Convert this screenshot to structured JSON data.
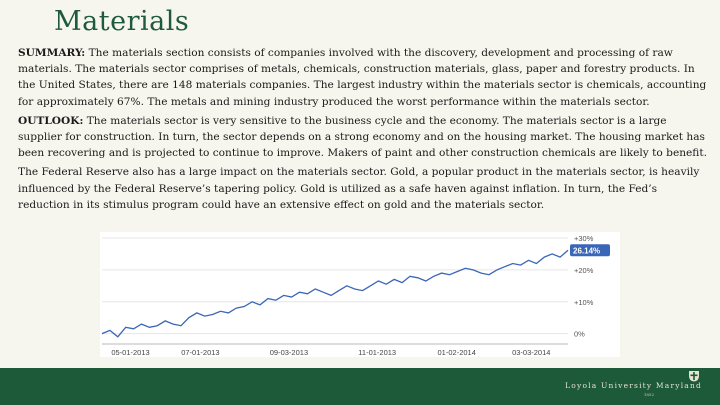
{
  "slide": {
    "title": "Materials",
    "summary_label": "SUMMARY:",
    "summary_text": " The materials section consists of companies involved with the discovery, development and processing of raw materials. The materials sector comprises of metals, chemicals, construction materials, glass, paper and forestry products. In the United States, there are 148 materials companies. The largest industry within the materials sector is chemicals, accounting for approximately 67%. The metals and mining industry produced the worst performance within the materials sector.",
    "outlook_label": "OUTLOOK:",
    "outlook_text": " The materials sector is very sensitive to the business cycle and the economy. The materials sector is a large supplier for construction. In turn, the sector depends on a strong economy and on the housing market. The housing market has been recovering and is projected to continue to improve. Makers of paint and other construction chemicals are likely to benefit.",
    "fed_text": "The Federal Reserve also has a large impact on the materials sector. Gold, a popular product in the materials sector, is heavily influenced by the Federal Reserve’s tapering policy. Gold is utilized as a safe haven against inflation. In turn, the Fed’s reduction in its stimulus program could have an extensive effect on gold and the materials sector."
  },
  "footer": {
    "university": "Loyola University Maryland",
    "founded": "1852"
  },
  "colors": {
    "title": "#1f5a3b",
    "footer": "#1c5a3a",
    "line": "#3a66b8",
    "badge": "#3a66b8"
  },
  "chart_data": {
    "type": "line",
    "x_tick_labels": [
      "05-01-2013",
      "07-01-2013",
      "09-03-2013",
      "11-01-2013",
      "01-02-2014",
      "03-03-2014"
    ],
    "y_tick_labels": [
      "+30%",
      "+20%",
      "+10%",
      "0%"
    ],
    "ylim": [
      -2,
      30
    ],
    "last_value_label": "26.14%",
    "series": [
      {
        "values": [
          0,
          1,
          -1,
          2,
          1.5,
          3,
          2,
          2.5,
          4,
          3,
          2.5,
          5,
          6.5,
          5.5,
          6,
          7,
          6.5,
          8,
          8.5,
          10,
          9,
          11,
          10.5,
          12,
          11.5,
          13,
          12.5,
          14,
          13,
          12,
          13.5,
          15,
          14,
          13.5,
          15,
          16.5,
          15.5,
          17,
          16,
          18,
          17.5,
          16.5,
          18,
          19,
          18.5,
          19.5,
          20.5,
          20,
          19,
          18.5,
          20,
          21,
          22,
          21.5,
          23,
          22,
          24,
          25,
          24,
          26.14
        ]
      }
    ]
  }
}
